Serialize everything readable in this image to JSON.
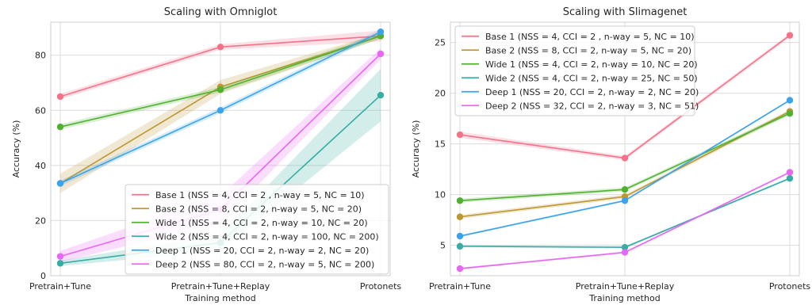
{
  "chart_data": [
    {
      "type": "line",
      "title": "Scaling with Omniglot",
      "xlabel": "Training method",
      "ylabel": "Accuracy (%)",
      "categories": [
        "Pretrain+Tune",
        "Pretrain+Tune+Replay",
        "Protonets"
      ],
      "ylim": [
        0,
        92
      ],
      "yticks": [
        0,
        20,
        40,
        60,
        80
      ],
      "grid": true,
      "legend_position": "lower-right",
      "series": [
        {
          "name": "Base 1 (NSS = 4, CCI = 2 , n-way = 5, NC = 10)",
          "color": "#f77189",
          "values": [
            65,
            83,
            87
          ],
          "band": [
            [
              64,
              66
            ],
            [
              82,
              84
            ],
            [
              85,
              89
            ]
          ]
        },
        {
          "name": "Base 2 (NSS = 8, CCI = 2, n-way = 5, NC = 20)",
          "color": "#bb9832",
          "values": [
            33.5,
            68.5,
            87
          ],
          "band": [
            [
              30,
              37
            ],
            [
              66,
              71
            ],
            [
              86,
              88
            ]
          ]
        },
        {
          "name": "Wide 1 (NSS = 4, CCI = 2, n-way = 10, NC = 20)",
          "color": "#50b131",
          "values": [
            54,
            67.5,
            87
          ],
          "band": [
            [
              53,
              55
            ],
            [
              66.5,
              68.5
            ],
            [
              86,
              88
            ]
          ]
        },
        {
          "name": "Wide 2 (NSS = 4, CCI = 2, n-way = 100, NC = 200)",
          "color": "#36ada4",
          "values": [
            4.5,
            12,
            65.5
          ],
          "band": [
            [
              3.5,
              5.5
            ],
            [
              9,
              15
            ],
            [
              56,
              75
            ]
          ]
        },
        {
          "name": "Deep 1 (NSS = 20, CCI = 2, n-way = 2, NC = 20)",
          "color": "#3ba3ec",
          "values": [
            33.5,
            60,
            88.5
          ],
          "band": [
            [
              32.5,
              34.5
            ],
            [
              59,
              61
            ],
            [
              87.5,
              89.5
            ]
          ]
        },
        {
          "name": "Deep 2 (NSS = 80, CCI = 2, n-way = 5, NC = 200)",
          "color": "#e866f4",
          "values": [
            7,
            24,
            80.5
          ],
          "band": [
            [
              5,
              9
            ],
            [
              19,
              29
            ],
            [
              78.5,
              82.5
            ]
          ]
        }
      ]
    },
    {
      "type": "line",
      "title": "Scaling with Slimagenet",
      "xlabel": "Training method",
      "ylabel": "Accuracy (%)",
      "categories": [
        "Pretrain+Tune",
        "Pretrain+Tune+Replay",
        "Protonets"
      ],
      "ylim": [
        2,
        27
      ],
      "yticks": [
        5,
        10,
        15,
        20,
        25
      ],
      "grid": true,
      "legend_position": "upper-left",
      "series": [
        {
          "name": "Base 1 (NSS = 4, CCI = 2 , n-way = 5, NC = 10)",
          "color": "#f77189",
          "values": [
            15.9,
            13.6,
            25.7
          ],
          "band": [
            [
              15.6,
              16.2
            ],
            [
              13.4,
              13.8
            ],
            [
              25.5,
              25.9
            ]
          ]
        },
        {
          "name": "Base 2 (NSS = 8, CCI = 2, n-way = 5, NC = 20)",
          "color": "#bb9832",
          "values": [
            7.8,
            9.8,
            18.2
          ],
          "band": [
            [
              7.6,
              8.0
            ],
            [
              9.6,
              10.0
            ],
            [
              18.0,
              18.4
            ]
          ]
        },
        {
          "name": "Wide 1 (NSS = 4, CCI = 2, n-way = 10, NC = 20)",
          "color": "#50b131",
          "values": [
            9.4,
            10.5,
            18.0
          ],
          "band": [
            [
              9.2,
              9.6
            ],
            [
              10.3,
              10.7
            ],
            [
              17.8,
              18.2
            ]
          ]
        },
        {
          "name": "Wide 2 (NSS = 4, CCI = 2, n-way = 25, NC = 50)",
          "color": "#36ada4",
          "values": [
            4.9,
            4.8,
            11.6
          ],
          "band": [
            [
              4.8,
              5.0
            ],
            [
              4.7,
              4.9
            ],
            [
              11.5,
              11.7
            ]
          ]
        },
        {
          "name": "Deep 1 (NSS = 20, CCI = 2, n-way = 2, NC = 20)",
          "color": "#3ba3ec",
          "values": [
            5.9,
            9.4,
            19.3
          ],
          "band": [
            [
              5.8,
              6.0
            ],
            [
              9.3,
              9.5
            ],
            [
              19.2,
              19.4
            ]
          ]
        },
        {
          "name": "Deep 2 (NSS = 32, CCI = 2, n-way = 3, NC = 51)",
          "color": "#e866f4",
          "values": [
            2.7,
            4.3,
            12.2
          ],
          "band": [
            [
              2.6,
              2.8
            ],
            [
              4.2,
              4.4
            ],
            [
              12.1,
              12.3
            ]
          ]
        }
      ]
    }
  ]
}
